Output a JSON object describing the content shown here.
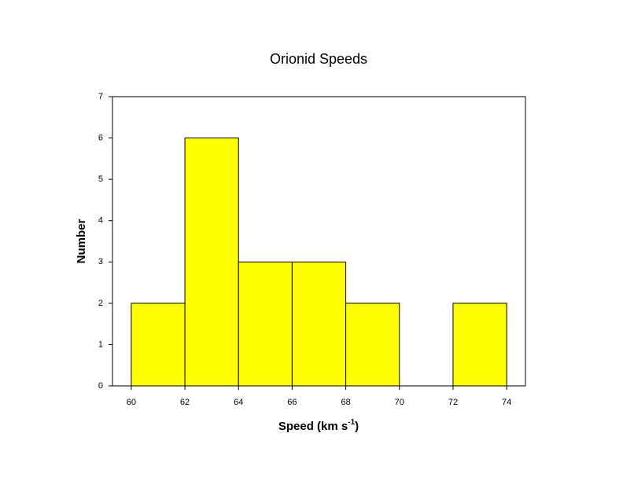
{
  "chart_data": {
    "type": "histogram",
    "title": "Orionid Speeds",
    "xlabel": [
      "Speed (km s",
      "-1",
      ")"
    ],
    "ylabel": "Number",
    "bins": [
      60,
      62,
      64,
      66,
      68,
      70,
      72,
      74
    ],
    "counts": [
      2,
      6,
      3,
      3,
      2,
      0,
      2
    ],
    "color": "#ffff00",
    "xlim": [
      59.3,
      74.7
    ],
    "xticks": [
      60,
      62,
      64,
      66,
      68,
      70,
      72,
      74
    ],
    "ylim": [
      0,
      7
    ],
    "yticks": [
      0,
      1,
      2,
      3,
      4,
      5,
      6,
      7
    ],
    "grid": false
  }
}
